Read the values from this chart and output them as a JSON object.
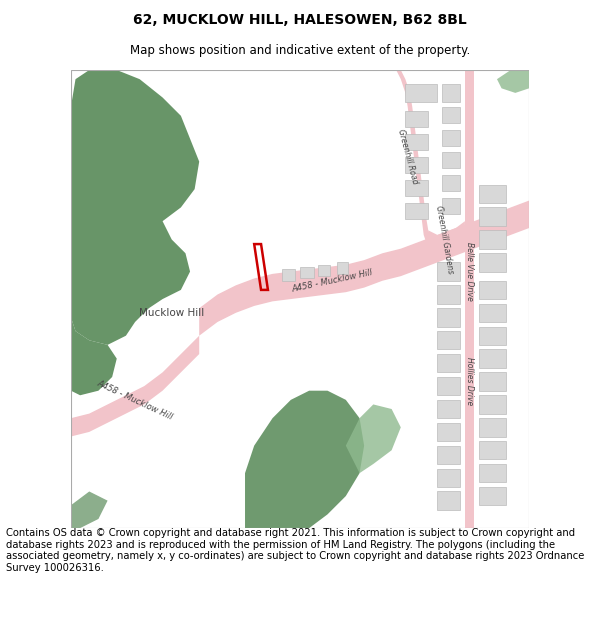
{
  "title": "62, MUCKLOW HILL, HALESOWEN, B62 8BL",
  "subtitle": "Map shows position and indicative extent of the property.",
  "footer": "Contains OS data © Crown copyright and database right 2021. This information is subject to Crown copyright and database rights 2023 and is reproduced with the permission of HM Land Registry. The polygons (including the associated geometry, namely x, y co-ordinates) are subject to Crown copyright and database rights 2023 Ordnance Survey 100026316.",
  "bg_color": "#ffffff",
  "title_fontsize": 10,
  "subtitle_fontsize": 8.5,
  "footer_fontsize": 7.2,
  "green_dark": "#5b8c5b",
  "green_light": "#8fba8f",
  "road_pink": "#f2c4ca",
  "building_color": "#d8d8d8",
  "building_outline": "#bbbbbb",
  "plot_color": "#cc0000",
  "label_color": "#444444"
}
